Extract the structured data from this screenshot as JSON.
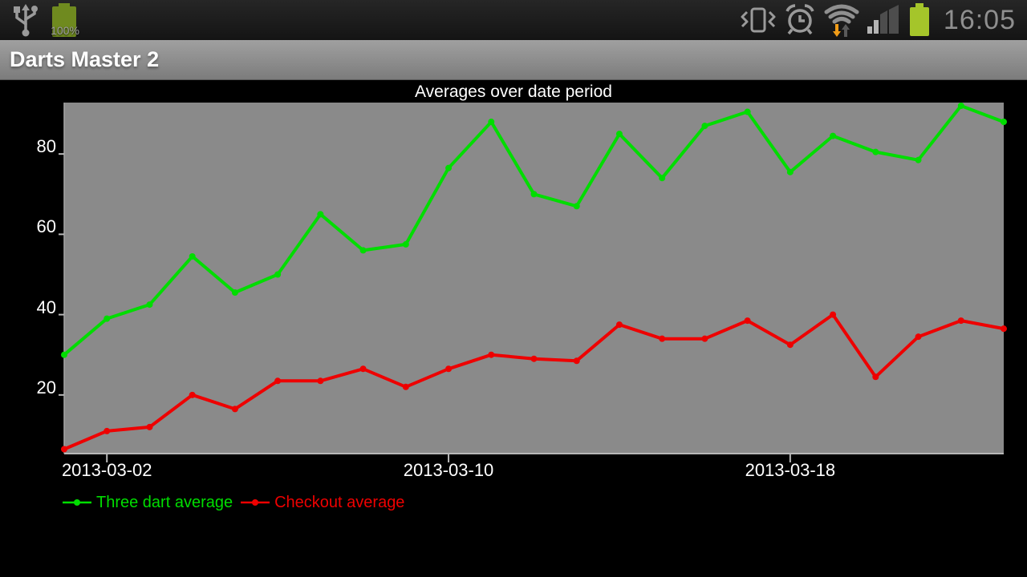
{
  "status_bar": {
    "time": "16:05",
    "battery_label": "100%",
    "icons": [
      "usb-icon",
      "battery-charging-icon",
      "vibrate-silent-icon",
      "alarm-icon",
      "wifi-traffic-icon",
      "signal-strength-icon",
      "battery-icon"
    ],
    "colors": {
      "icon_gray": "#9a9a9a",
      "time_gray": "#8f8f8f",
      "battery_left_olive": "#6f8a1f",
      "battery_right_green": "#a5c52a",
      "wifi_down_arrow_orange": "#f09c18",
      "signal_dim": "#4d4d4d",
      "signal_lit": "#b3b3b3"
    }
  },
  "app": {
    "title": "Darts Master 2"
  },
  "chart_data": {
    "type": "line",
    "title": "Averages over date period",
    "x": [
      "2013-03-01",
      "2013-03-02",
      "2013-03-03",
      "2013-03-04",
      "2013-03-05",
      "2013-03-06",
      "2013-03-07",
      "2013-03-08",
      "2013-03-09",
      "2013-03-10",
      "2013-03-11",
      "2013-03-12",
      "2013-03-13",
      "2013-03-14",
      "2013-03-15",
      "2013-03-16",
      "2013-03-17",
      "2013-03-18",
      "2013-03-19",
      "2013-03-20",
      "2013-03-21",
      "2013-03-22",
      "2013-03-23"
    ],
    "series": [
      {
        "name": "Three dart average",
        "color": "#00dd00",
        "values": [
          30,
          39,
          42.5,
          54.5,
          45.5,
          50,
          65,
          56,
          57.5,
          76.5,
          88,
          70,
          67,
          85,
          74,
          87,
          90.5,
          75.5,
          84.5,
          80.5,
          78.5,
          92,
          88
        ]
      },
      {
        "name": "Checkout average",
        "color": "#ee0000",
        "values": [
          6.5,
          11,
          12,
          20,
          16.5,
          23.5,
          23.5,
          26.5,
          22,
          26.5,
          30,
          29,
          28.5,
          37.5,
          34,
          34,
          38.5,
          32.5,
          40,
          24.5,
          34.5,
          38.5,
          36.5
        ]
      }
    ],
    "xtick_labels": [
      "2013-03-02",
      "2013-03-10",
      "2013-03-18"
    ],
    "xtick_indices": [
      1,
      9,
      17
    ],
    "yticks": [
      20,
      40,
      60,
      80
    ],
    "ylim": [
      5.4,
      92.8
    ],
    "plot_bg": "#8a8a8a",
    "axis_color": "#b8b8b8",
    "text_color": "#ffffff",
    "grid": false,
    "legend_position": "bottom-left"
  }
}
